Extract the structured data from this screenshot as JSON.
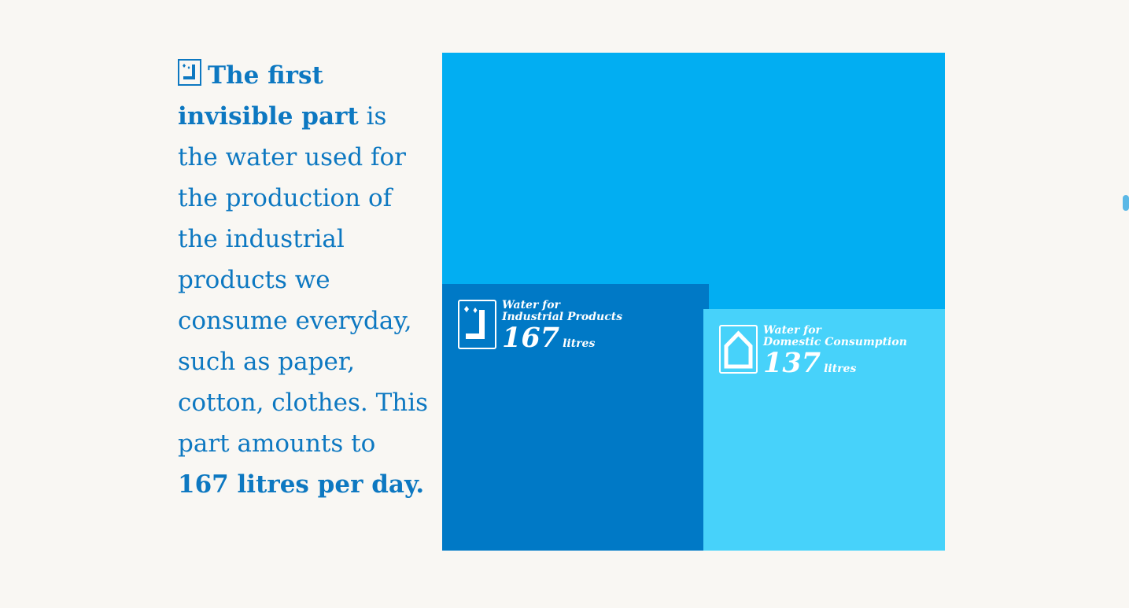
{
  "intro": {
    "heading_bold": "The first invisible part",
    "body": " is the water used for the production of the industrial products we consume everyday, such as paper, cotton, clothes. This part amounts to ",
    "highlight": "167 litres per day.",
    "icon": "faucet-icon"
  },
  "colors": {
    "background": "#f9f7f3",
    "text": "#0d78c1",
    "total_block": "#02aef2",
    "industrial_block": "#0079c6",
    "domestic_block": "#47d2fa",
    "label": "#ffffff"
  },
  "chart_data": {
    "type": "treemap",
    "unit": "litres",
    "series": [
      {
        "name": "Water for Industrial Products",
        "line1": "Water for",
        "line2": "Industrial Products",
        "value": 167,
        "value_label": "167",
        "icon": "faucet-icon"
      },
      {
        "name": "Water for Domestic Consumption",
        "line1": "Water for",
        "line2": "Domestic Consumption",
        "value": 137,
        "value_label": "137",
        "icon": "house-icon"
      }
    ]
  }
}
